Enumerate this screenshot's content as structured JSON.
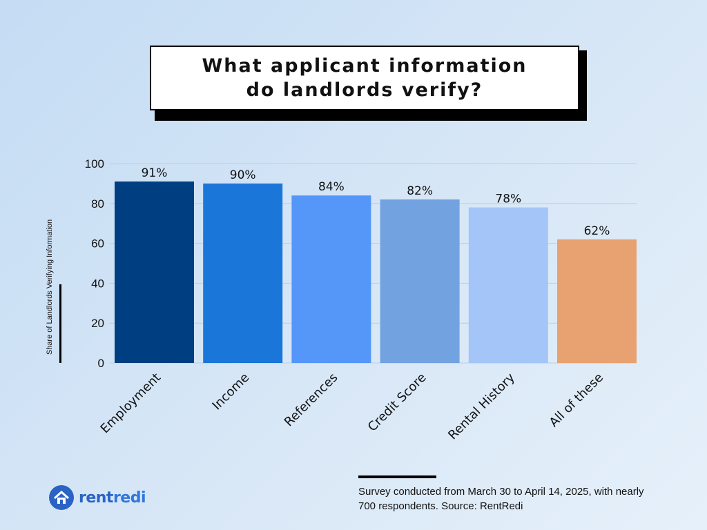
{
  "title": "What applicant information do landlords verify?",
  "logo": {
    "brand_part1": "rent",
    "brand_part2": "redi",
    "icon": "house-logo-icon"
  },
  "source_note": "Survey conducted from March 30 to April 14, 2025, with nearly 700 respondents. Source: RentRedi",
  "chart_data": {
    "type": "bar",
    "title": "What applicant information do landlords verify?",
    "xlabel": "",
    "ylabel": "Share of Landlords Verifying Information",
    "ylim": [
      0,
      100
    ],
    "yticks": [
      0,
      20,
      40,
      60,
      80,
      100
    ],
    "grid": true,
    "categories": [
      "Employment",
      "Income",
      "References",
      "Credit Score",
      "Rental History",
      "All of these"
    ],
    "values": [
      91,
      90,
      84,
      82,
      78,
      62
    ],
    "data_labels": [
      "91%",
      "90%",
      "84%",
      "82%",
      "78%",
      "62%"
    ],
    "colors": [
      "#003e82",
      "#1b76da",
      "#5497f9",
      "#72a2e0",
      "#a3c5f7",
      "#e8a271"
    ]
  }
}
